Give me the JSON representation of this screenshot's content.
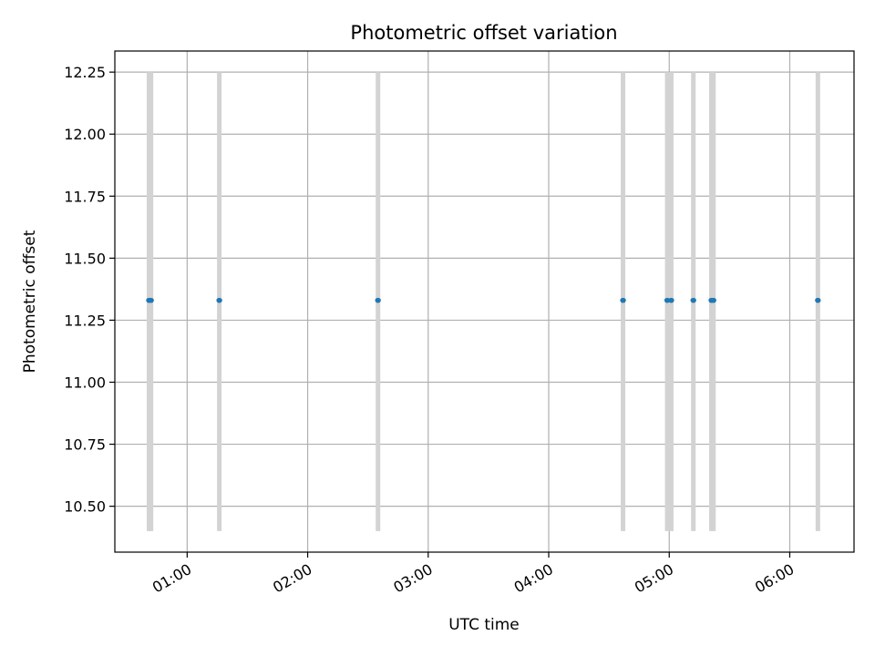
{
  "chart_data": {
    "type": "scatter",
    "title": "Photometric offset variation",
    "xlabel": "UTC time",
    "ylabel": "Photometric offset",
    "xlim": [
      "00:24",
      "06:32"
    ],
    "ylim": [
      10.315,
      12.335
    ],
    "x_ticks": [
      "01:00",
      "02:00",
      "03:00",
      "04:00",
      "05:00",
      "06:00"
    ],
    "y_ticks": [
      "10.50",
      "10.75",
      "11.00",
      "11.25",
      "11.50",
      "11.75",
      "12.00",
      "12.25"
    ],
    "grid": true,
    "legend": "none",
    "colors": {
      "points": "#1f77b4",
      "error_bars": "#d3d3d3",
      "grid": "#b0b0b0"
    },
    "points": [
      {
        "x": "00:41",
        "y": 11.33,
        "yerr_low": 10.4,
        "yerr_high": 12.25
      },
      {
        "x": "00:42",
        "y": 11.33,
        "yerr_low": 10.4,
        "yerr_high": 12.25
      },
      {
        "x": "01:16",
        "y": 11.33,
        "yerr_low": 10.4,
        "yerr_high": 12.25
      },
      {
        "x": "02:35",
        "y": 11.33,
        "yerr_low": 10.4,
        "yerr_high": 12.25
      },
      {
        "x": "04:37",
        "y": 11.33,
        "yerr_low": 10.4,
        "yerr_high": 12.25
      },
      {
        "x": "04:59",
        "y": 11.33,
        "yerr_low": 10.4,
        "yerr_high": 12.25
      },
      {
        "x": "05:01",
        "y": 11.33,
        "yerr_low": 10.4,
        "yerr_high": 12.25
      },
      {
        "x": "05:12",
        "y": 11.33,
        "yerr_low": 10.4,
        "yerr_high": 12.25
      },
      {
        "x": "05:21",
        "y": 11.33,
        "yerr_low": 10.4,
        "yerr_high": 12.25
      },
      {
        "x": "05:22",
        "y": 11.33,
        "yerr_low": 10.4,
        "yerr_high": 12.25
      },
      {
        "x": "06:14",
        "y": 11.33,
        "yerr_low": 10.4,
        "yerr_high": 12.25
      }
    ]
  }
}
